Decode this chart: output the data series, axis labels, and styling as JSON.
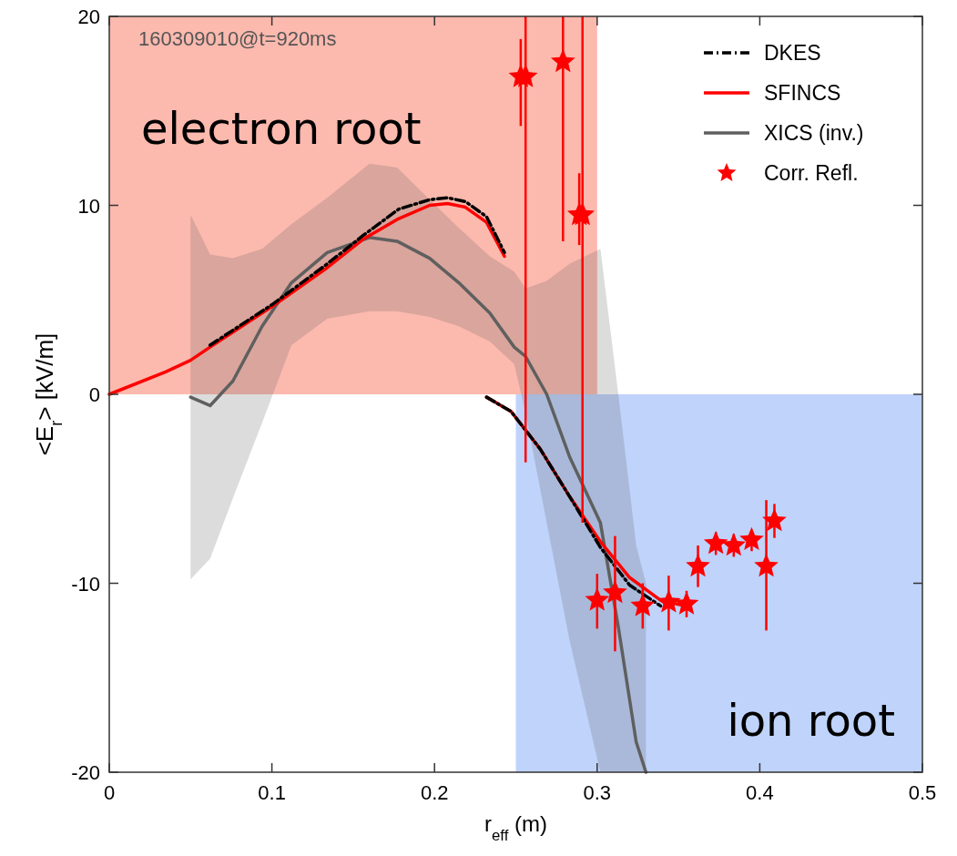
{
  "chart_data": {
    "type": "line",
    "xlabel": "r$_{eff}$ (m)",
    "ylabel": "<E$_{r}$> [kV/m]",
    "xlim": [
      0,
      0.5
    ],
    "xticks": [
      0,
      0.1,
      0.2,
      0.3,
      0.4,
      0.5
    ],
    "ylim": [
      -20,
      20
    ],
    "yticks": [
      -20,
      -10,
      0,
      10,
      20
    ],
    "grid": false,
    "legend": "top right",
    "annotations": [
      "160309010@t=920ms"
    ],
    "series": [
      {
        "name": "electron root",
        "type": "area",
        "color": "#fcb9ae",
        "x": [
          0,
          0.3
        ],
        "values": [
          20,
          20
        ]
      },
      {
        "name": "ion root",
        "type": "area",
        "color": "#bfd3fb",
        "x": [
          0.25,
          0.5
        ],
        "values": [
          -20,
          -20
        ]
      },
      {
        "name": "DKES",
        "color": "#000000",
        "line_style": "dashed",
        "x": [
          0.062,
          0.101,
          0.134,
          0.156,
          0.178,
          0.197,
          0.208,
          0.219,
          0.232,
          0.243,
          0.237,
          0.232,
          0.247,
          0.265,
          0.283,
          0.302,
          0.32,
          0.339
        ],
        "values": [
          2.6,
          4.8,
          6.9,
          8.4,
          9.8,
          10.3,
          10.4,
          10.2,
          9.4,
          7.5,
          null,
          -0.15,
          -0.9,
          -2.9,
          -5.4,
          -8.1,
          -10.1,
          -11.2
        ]
      },
      {
        "name": "SFINCS",
        "color": "#ff0000",
        "line_style": "solid",
        "x": [
          0,
          0.035,
          0.05,
          0.062,
          0.101,
          0.134,
          0.156,
          0.178,
          0.197,
          0.208,
          0.219,
          0.232,
          0.243,
          0.237,
          0.232,
          0.247,
          0.265,
          0.283,
          0.302,
          0.32,
          0.339,
          0.354
        ],
        "values": [
          0,
          1.2,
          1.8,
          2.5,
          4.7,
          6.7,
          8.2,
          9.3,
          10.0,
          10.1,
          9.9,
          9.1,
          7.3,
          null,
          -0.15,
          -0.9,
          -2.9,
          -5.4,
          -7.8,
          -9.7,
          -10.9,
          -11.2
        ]
      },
      {
        "name": "XICS (inv.)",
        "color": "#5f5f5f",
        "line_style": "solid",
        "x": [
          0.05,
          0.062,
          0.076,
          0.094,
          0.112,
          0.134,
          0.16,
          0.177,
          0.197,
          0.215,
          0.234,
          0.249,
          0.256,
          0.269,
          0.283,
          0.302,
          0.313,
          0.324,
          0.33
        ],
        "values": [
          -0.15,
          -0.6,
          0.7,
          3.6,
          5.9,
          7.5,
          8.3,
          8.1,
          7.2,
          5.9,
          4.3,
          2.5,
          2.0,
          0,
          -3.3,
          -6.8,
          -12.3,
          -18.4,
          -20
        ],
        "lower": [
          -9.8,
          -8.7,
          -5.5,
          -1.5,
          2.6,
          4.0,
          4.4,
          4.4,
          4.1,
          3.6,
          2.8,
          1.6,
          -1,
          -6.8,
          -13,
          -20,
          -20,
          -20,
          -20
        ],
        "upper": [
          9.5,
          7.4,
          7.2,
          7.7,
          9.0,
          10.4,
          12.2,
          12.0,
          10.3,
          8.8,
          7.3,
          6.5,
          5.6,
          6.0,
          6.9,
          7.7,
          0,
          -8,
          -10
        ]
      },
      {
        "name": "Corr. Refl.",
        "type": "scatter",
        "marker": "star",
        "color": "#ff0000",
        "x": [
          0.253,
          0.256,
          0.279,
          0.289,
          0.291,
          0.3,
          0.311,
          0.328,
          0.344,
          0.355,
          0.362,
          0.373,
          0.384,
          0.395,
          0.404,
          0.409
        ],
        "values": [
          16.8,
          16.8,
          17.6,
          9.5,
          9.5,
          -10.9,
          -10.5,
          -11.2,
          -11.0,
          -11.1,
          -9.1,
          -7.9,
          -8.0,
          -7.7,
          -9.1,
          -6.7
        ],
        "errors": [
          [
            14.2,
            18.8
          ],
          [
            -3.6,
            20
          ],
          [
            8.1,
            20
          ],
          [
            7.9,
            11.7
          ],
          [
            -6.8,
            20
          ],
          [
            -12.4,
            -9.5
          ],
          [
            -13.6,
            -7.5
          ],
          [
            -12.4,
            -10.0
          ],
          [
            -12.5,
            -9.6
          ],
          [
            -11.8,
            -10.4
          ],
          [
            -10.2,
            -8.0
          ],
          [
            -8.5,
            -7.3
          ],
          [
            -8.6,
            -7.4
          ],
          [
            -8.3,
            -7.2
          ],
          [
            -12.5,
            -5.6
          ],
          [
            -7.6,
            -5.8
          ]
        ]
      }
    ]
  }
}
